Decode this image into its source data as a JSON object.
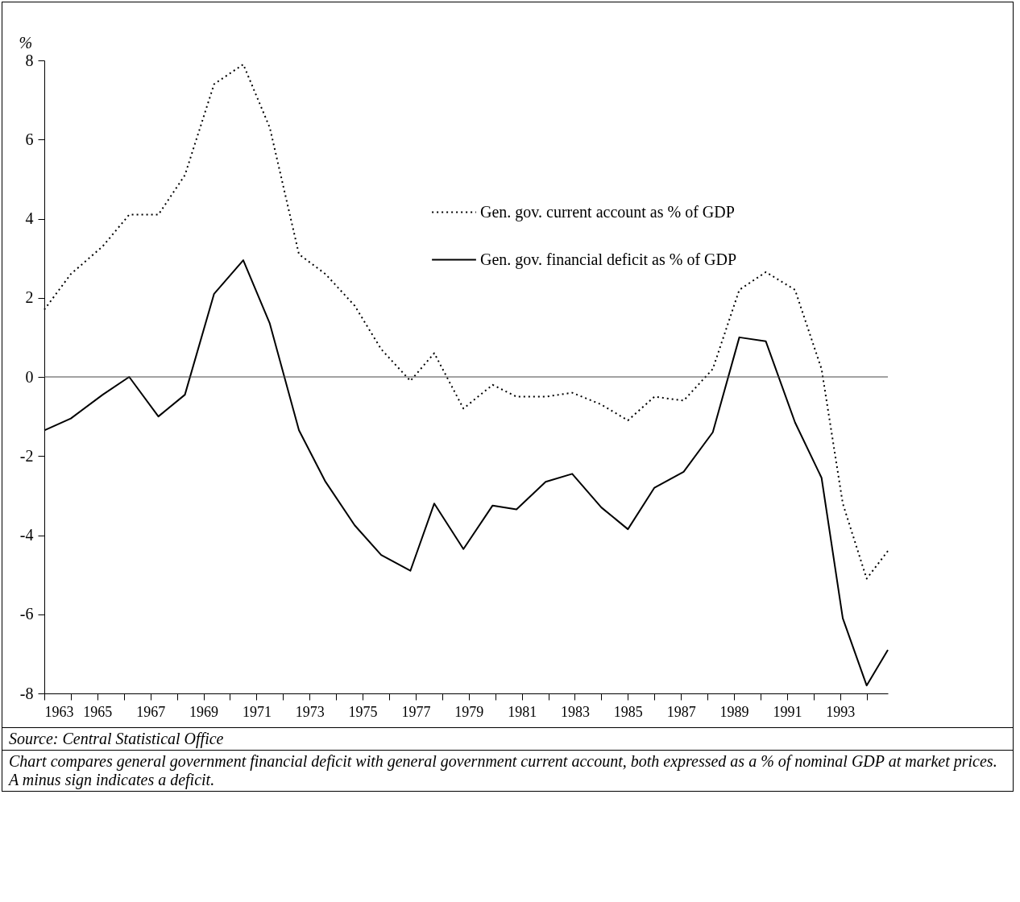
{
  "chart_data": {
    "type": "line",
    "ylabel": "%",
    "x": [
      1963.0,
      1964.0,
      1965.2,
      1966.2,
      1967.3,
      1968.3,
      1969.4,
      1970.5,
      1971.5,
      1972.6,
      1973.6,
      1974.7,
      1975.7,
      1976.8,
      1977.7,
      1978.8,
      1979.9,
      1980.8,
      1981.9,
      1982.9,
      1984.0,
      1985.0,
      1986.0,
      1987.1,
      1988.2,
      1989.2,
      1990.2,
      1991.3,
      1992.3,
      1993.1,
      1994.0,
      1994.8
    ],
    "series": [
      {
        "name": "Gen. gov. current account as % of GDP",
        "color": "#000000",
        "line_style": "dotted",
        "values": [
          1.7,
          2.6,
          3.3,
          4.1,
          4.1,
          5.1,
          7.4,
          7.9,
          6.3,
          3.1,
          2.6,
          1.8,
          0.7,
          -0.1,
          0.6,
          -0.8,
          -0.2,
          -0.5,
          -0.5,
          -0.4,
          -0.7,
          -1.1,
          -0.5,
          -0.6,
          0.2,
          2.2,
          2.65,
          2.2,
          0.2,
          -3.2,
          -5.1,
          -4.4
        ]
      },
      {
        "name": "Gen. gov. financial deficit as % of GDP",
        "color": "#000000",
        "line_style": "solid",
        "values": [
          -1.35,
          -1.05,
          -0.45,
          0.0,
          -1.0,
          -0.45,
          2.1,
          2.95,
          1.35,
          -1.35,
          -2.65,
          -3.75,
          -4.5,
          -4.9,
          -3.2,
          -4.35,
          -3.25,
          -3.35,
          -2.65,
          -2.45,
          -3.3,
          -3.85,
          -2.8,
          -2.4,
          -1.4,
          1.0,
          0.9,
          -1.15,
          -2.55,
          -6.1,
          -7.8,
          -6.9
        ]
      }
    ],
    "xlim": [
      1963,
      1994.8
    ],
    "xticks": [
      1963,
      {
        "value": 1964,
        "label": null
      },
      1965,
      {
        "value": 1966,
        "label": null
      },
      1967,
      {
        "value": 1968,
        "label": null
      },
      1969,
      {
        "value": 1970,
        "label": null
      },
      1971,
      {
        "value": 1972,
        "label": null
      },
      1973,
      {
        "value": 1974,
        "label": null
      },
      1975,
      {
        "value": 1976,
        "label": null
      },
      1977,
      {
        "value": 1978,
        "label": null
      },
      1979,
      {
        "value": 1980,
        "label": null
      },
      1981,
      {
        "value": 1982,
        "label": null
      },
      1983,
      {
        "value": 1984,
        "label": null
      },
      1985,
      {
        "value": 1986,
        "label": null
      },
      1987,
      {
        "value": 1988,
        "label": null
      },
      1989,
      {
        "value": 1990,
        "label": null
      },
      1991,
      {
        "value": 1992,
        "label": null
      },
      1993,
      {
        "value": 1994,
        "label": null
      }
    ],
    "ylim": [
      -8,
      8
    ],
    "yticks": [
      -8,
      -6,
      -4,
      -2,
      0,
      2,
      4,
      6,
      8
    ],
    "ref_lines": [
      {
        "axis": "y",
        "value": 0
      }
    ],
    "legend": "top",
    "grid": false,
    "marker": "none",
    "annotations": [
      "Source: Central Statistical Office",
      "Chart compares general government financial deficit with general government current account, both expressed as a % of nominal GDP at market prices. A minus sign indicates a deficit."
    ]
  }
}
